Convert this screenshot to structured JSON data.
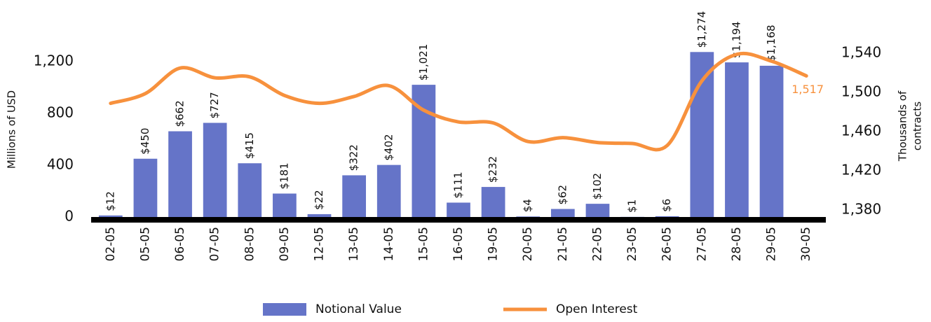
{
  "chart_data": {
    "type": "bar_line",
    "categories": [
      "02-05",
      "05-05",
      "06-05",
      "07-05",
      "08-05",
      "09-05",
      "12-05",
      "13-05",
      "14-05",
      "15-05",
      "16-05",
      "19-05",
      "20-05",
      "21-05",
      "22-05",
      "23-05",
      "26-05",
      "27-05",
      "28-05",
      "29-05",
      "30-05"
    ],
    "series": [
      {
        "name": "Notional Value",
        "type": "bar",
        "color": "#6574c8",
        "values": [
          12,
          450,
          662,
          727,
          415,
          181,
          22,
          322,
          402,
          1021,
          111,
          232,
          4,
          62,
          102,
          1,
          6,
          1274,
          1194,
          1168,
          null
        ],
        "value_labels": [
          "$12",
          "$450",
          "$662",
          "$727",
          "$415",
          "$181",
          "$22",
          "$322",
          "$402",
          "$1,021",
          "$111",
          "$232",
          "$4",
          "$62",
          "$102",
          "$1",
          "$6",
          "$1,274",
          "$1,194",
          "$1,168",
          null
        ]
      },
      {
        "name": "Open Interest",
        "type": "line",
        "axis": "y2",
        "color": "#f7913d",
        "values": [
          1489,
          1499,
          1525,
          1515,
          1516,
          1497,
          1489,
          1496,
          1507,
          1482,
          1470,
          1469,
          1450,
          1454,
          1449,
          1448,
          1446,
          1512,
          1539,
          1532,
          1517
        ],
        "value_labels": [
          null,
          null,
          null,
          null,
          null,
          null,
          null,
          null,
          null,
          null,
          null,
          null,
          null,
          null,
          null,
          null,
          null,
          null,
          null,
          null,
          "1,517"
        ]
      }
    ],
    "ylabel": "Millions of USD",
    "y2label": [
      "Thousands of",
      "contracts"
    ],
    "ylim": [
      0,
      1400
    ],
    "yticks": [
      0,
      400,
      800,
      {
        "value": 1200,
        "label": "1,200"
      }
    ],
    "y2lim": [
      1373,
      1558
    ],
    "y2ticks": [
      {
        "value": 1380,
        "label": "1,380"
      },
      {
        "value": 1420,
        "label": "1,420"
      },
      {
        "value": 1460,
        "label": "1,460"
      },
      {
        "value": 1500,
        "label": "1,500"
      },
      {
        "value": 1540,
        "label": "1,540"
      }
    ],
    "legend": "bottom"
  }
}
